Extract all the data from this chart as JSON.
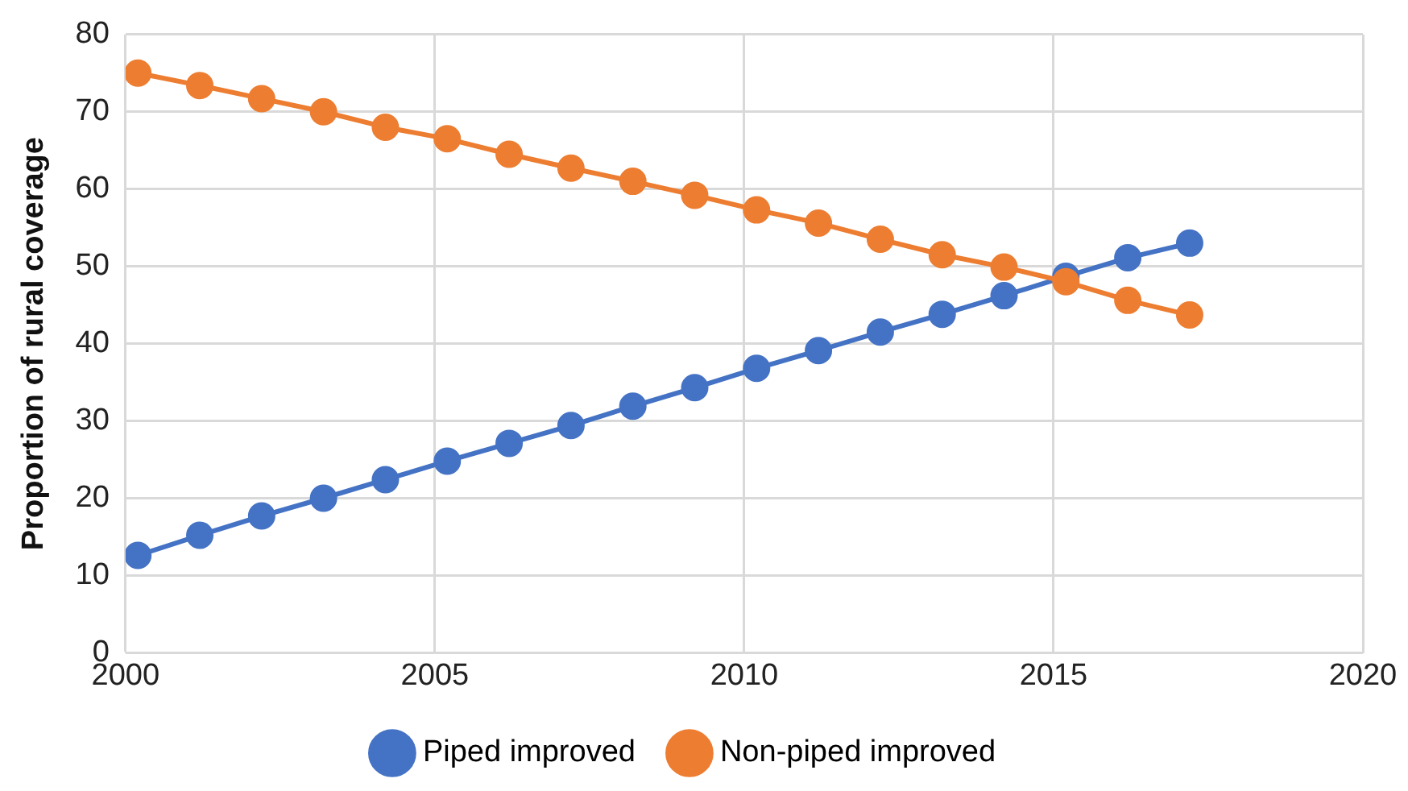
{
  "chart_data": {
    "type": "line",
    "ylabel": "Proportion of rural coverage",
    "x": [
      2000.2,
      2001.2,
      2002.2,
      2003.2,
      2004.2,
      2005.2,
      2006.2,
      2007.2,
      2008.2,
      2009.2,
      2010.2,
      2011.2,
      2012.2,
      2013.2,
      2014.2,
      2015.2,
      2016.2,
      2017.2
    ],
    "series": [
      {
        "name": "Piped improved",
        "color": "#4472c4",
        "values": [
          12.6,
          15.2,
          17.7,
          20.0,
          22.4,
          24.8,
          27.1,
          29.4,
          31.9,
          34.3,
          36.8,
          39.1,
          41.5,
          43.8,
          46.2,
          48.7,
          51.1,
          53.0
        ]
      },
      {
        "name": "Non-piped improved",
        "color": "#ed7d31",
        "values": [
          75.0,
          73.4,
          71.7,
          70.0,
          68.0,
          66.5,
          64.5,
          62.7,
          61.0,
          59.2,
          57.3,
          55.6,
          53.5,
          51.5,
          49.9,
          48.0,
          45.6,
          43.7
        ]
      }
    ],
    "xlim": [
      2000,
      2020
    ],
    "xticks": [
      2000,
      2005,
      2010,
      2015,
      2020
    ],
    "ylim": [
      0,
      80
    ],
    "yticks": [
      0,
      10,
      20,
      30,
      40,
      50,
      60,
      70,
      80
    ],
    "grid": true,
    "legend": "bottom",
    "marker": "circle",
    "line_style": "solid"
  }
}
